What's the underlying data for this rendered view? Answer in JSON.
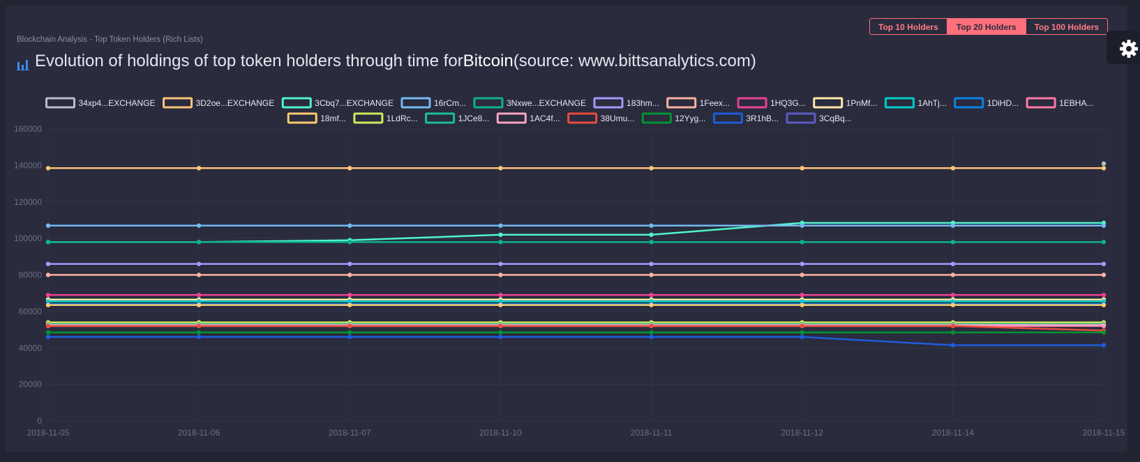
{
  "header": {
    "breadcrumb": "Blockchain Analysis - Top Token Holders (Rich Lists)",
    "title_prefix": "Evolution of holdings of top token holders through time for ",
    "title_coin": "Bitcoin",
    "title_suffix": " (source: www.bittsanalytics.com)"
  },
  "holder_buttons": [
    {
      "label": "Top 10 Holders",
      "active": false
    },
    {
      "label": "Top 20 Holders",
      "active": true
    },
    {
      "label": "Top 100 Holders",
      "active": false
    }
  ],
  "icons": {
    "title_icon": "bar-chart-icon",
    "settings": "gear-icon"
  },
  "chart_data": {
    "type": "line",
    "x": [
      "2018-11-05",
      "2018-11-06",
      "2018-11-07",
      "2018-11-10",
      "2018-11-11",
      "2018-11-12",
      "2018-11-14",
      "2018-11-15"
    ],
    "ylim": [
      0,
      160000
    ],
    "yticks": [
      0,
      20000,
      40000,
      60000,
      80000,
      100000,
      120000,
      140000,
      160000
    ],
    "grid": true,
    "legend_position": "top",
    "series": [
      {
        "name": "34xp4...EXCHANGE",
        "color": "#b5c0c7",
        "values": [
          null,
          null,
          null,
          null,
          null,
          null,
          null,
          141000
        ]
      },
      {
        "name": "3D2oe...EXCHANGE",
        "color": "#fec47a",
        "values": [
          138500,
          138500,
          138500,
          138500,
          138500,
          138500,
          138500,
          138500
        ]
      },
      {
        "name": "3Cbq7...EXCHANGE",
        "color": "#4ff5c8",
        "values": [
          98000,
          98000,
          99000,
          102000,
          102000,
          108500,
          108500,
          108500
        ]
      },
      {
        "name": "16rCm...",
        "color": "#74b9f2",
        "values": [
          107000,
          107000,
          107000,
          107000,
          107000,
          107000,
          107000,
          107000
        ]
      },
      {
        "name": "3Nxwe...EXCHANGE",
        "color": "#0eb18a",
        "values": [
          98000,
          98000,
          98000,
          98000,
          98000,
          98000,
          98000,
          98000
        ]
      },
      {
        "name": "183hm...",
        "color": "#a29bfe",
        "values": [
          86000,
          86000,
          86000,
          86000,
          86000,
          86000,
          86000,
          86000
        ]
      },
      {
        "name": "1Feex...",
        "color": "#fab1a0",
        "values": [
          80000,
          80000,
          80000,
          80000,
          80000,
          80000,
          80000,
          80000
        ]
      },
      {
        "name": "1HQ3G...",
        "color": "#e84393",
        "values": [
          69000,
          69000,
          69000,
          69000,
          69000,
          69000,
          69000,
          69000
        ]
      },
      {
        "name": "1PnMf...",
        "color": "#ffeaa7",
        "values": [
          66500,
          66500,
          66500,
          66500,
          66500,
          66500,
          66500,
          66500
        ]
      },
      {
        "name": "1AhTj...",
        "color": "#00cec9",
        "values": [
          65500,
          65500,
          65500,
          65500,
          65500,
          65500,
          65500,
          65500
        ]
      },
      {
        "name": "1DiHD...",
        "color": "#0984e3",
        "values": [
          64000,
          64000,
          64000,
          64000,
          64000,
          64000,
          64000,
          64000
        ]
      },
      {
        "name": "1EBHA...",
        "color": "#fd79a8",
        "values": [
          52000,
          52000,
          52000,
          52000,
          52000,
          52000,
          52000,
          52000
        ]
      },
      {
        "name": "18mf...",
        "color": "#fdcb6e",
        "values": [
          63500,
          63500,
          63500,
          63500,
          63500,
          63500,
          63500,
          63500
        ]
      },
      {
        "name": "1LdRc...",
        "color": "#d2e95d",
        "values": [
          54000,
          54000,
          54000,
          54000,
          54000,
          54000,
          54000,
          54000
        ]
      },
      {
        "name": "1JCe8...",
        "color": "#1abc9c",
        "values": [
          53000,
          53000,
          53000,
          53000,
          53000,
          53000,
          53000,
          53000
        ]
      },
      {
        "name": "1AC4f...",
        "color": "#f8a5c2",
        "values": [
          52500,
          52500,
          52500,
          52500,
          52500,
          52500,
          52500,
          52500
        ]
      },
      {
        "name": "38Umu...",
        "color": "#e84c3d",
        "values": [
          52000,
          52000,
          52000,
          52000,
          52000,
          52000,
          52000,
          49500
        ]
      },
      {
        "name": "12Yyg...",
        "color": "#009432",
        "values": [
          48500,
          48500,
          48500,
          48500,
          48500,
          48500,
          48500,
          48500
        ]
      },
      {
        "name": "3R1hB...",
        "color": "#1e5ddb",
        "values": [
          46000,
          46000,
          46000,
          46000,
          46000,
          46000,
          41500,
          41500
        ]
      },
      {
        "name": "3CqBq...",
        "color": "#5f5cc4",
        "values": [
          null,
          null,
          null,
          null,
          null,
          null,
          null,
          null
        ]
      }
    ]
  }
}
